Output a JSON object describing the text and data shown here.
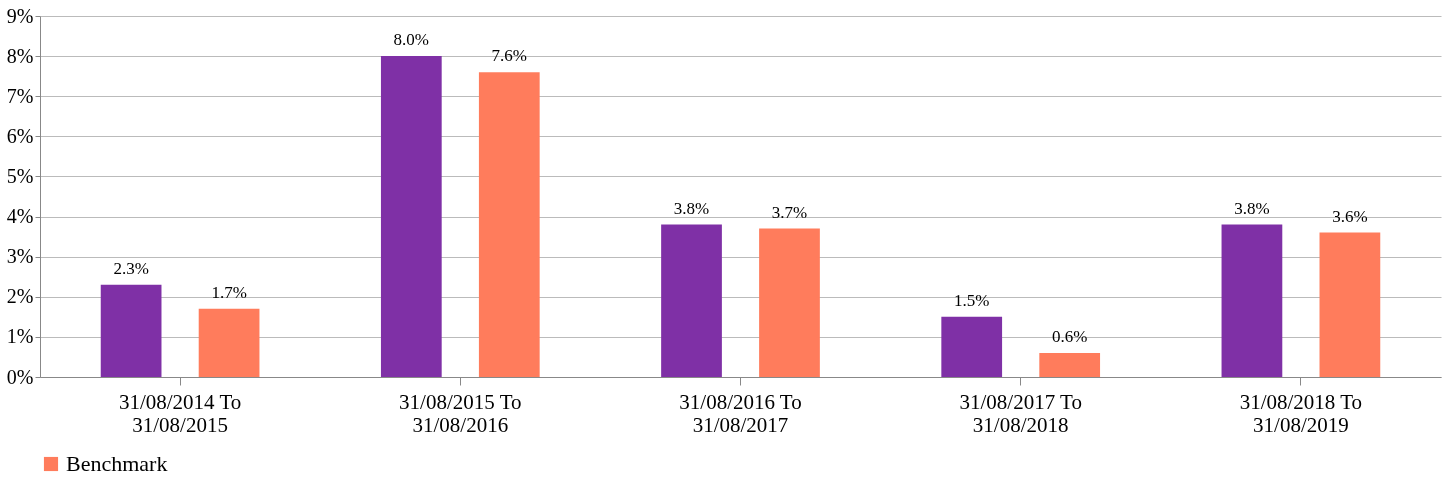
{
  "chart_data": {
    "type": "bar",
    "categories": [
      "31/08/2014 To\n31/08/2015",
      "31/08/2015 To\n31/08/2016",
      "31/08/2016 To\n31/08/2017",
      "31/08/2017 To\n31/08/2018",
      "31/08/2018 To\n31/08/2019"
    ],
    "series": [
      {
        "color": "#7f30a6",
        "values": [
          2.3,
          8.0,
          3.8,
          1.5,
          3.8
        ],
        "value_labels": [
          "2.3%",
          "8.0%",
          "3.8%",
          "1.5%",
          "3.8%"
        ]
      },
      {
        "name": "Benchmark",
        "color": "#ff7c5c",
        "values": [
          1.7,
          7.6,
          3.7,
          0.6,
          3.6
        ],
        "value_labels": [
          "1.7%",
          "7.6%",
          "3.7%",
          "0.6%",
          "3.6%"
        ]
      }
    ],
    "ylim": [
      0,
      9
    ],
    "yticks": [
      {
        "value": 0,
        "label": "0%"
      },
      {
        "value": 1,
        "label": "1%"
      },
      {
        "value": 2,
        "label": "2%"
      },
      {
        "value": 3,
        "label": "3%"
      },
      {
        "value": 4,
        "label": "4%"
      },
      {
        "value": 5,
        "label": "5%"
      },
      {
        "value": 6,
        "label": "6%"
      },
      {
        "value": 7,
        "label": "7%"
      },
      {
        "value": 8,
        "label": "8%"
      },
      {
        "value": 9,
        "label": "9%"
      }
    ],
    "grid": "y",
    "legend": "bottom"
  }
}
